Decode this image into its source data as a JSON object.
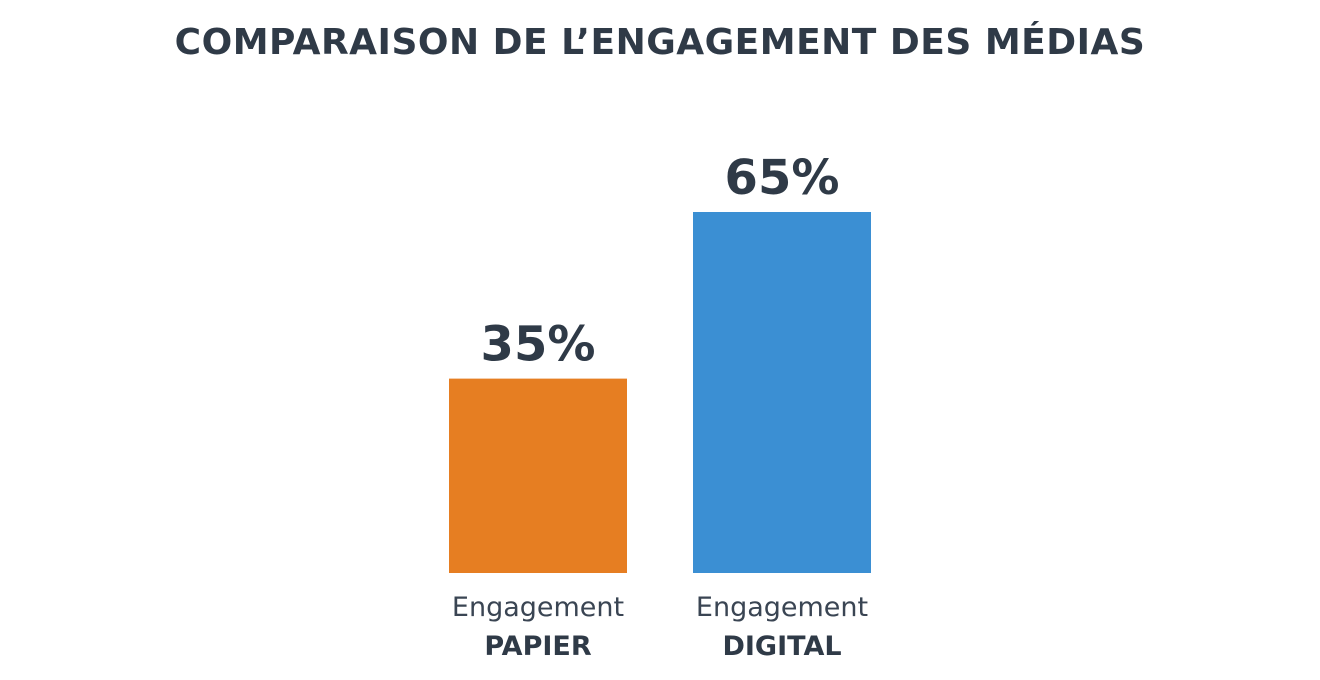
{
  "chart_data": {
    "type": "bar",
    "title": "COMPARAISON DE L’ENGAGEMENT DES MÉDIAS",
    "categories": [
      {
        "line1": "Engagement",
        "line2": "PAPIER"
      },
      {
        "line1": "Engagement",
        "line2": "DIGITAL"
      }
    ],
    "values": [
      35,
      65
    ],
    "value_labels": [
      "35%",
      "65%"
    ],
    "colors": [
      "#e67e22",
      "#3b8fd3"
    ],
    "ylim": [
      0,
      100
    ],
    "grid": false,
    "legend": "none",
    "xlabel": "",
    "ylabel": ""
  }
}
